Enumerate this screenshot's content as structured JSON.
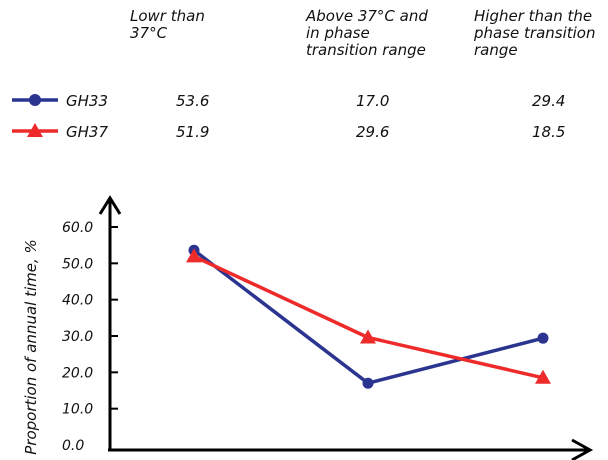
{
  "table": {
    "headers": [
      "Lowr than\n37°C",
      "Above 37°C and\nin phase\ntransition range",
      "Higher than the\nphase transition\nrange"
    ],
    "rows": [
      {
        "name": "GH33",
        "values": [
          "53.6",
          "17.0",
          "29.4"
        ]
      },
      {
        "name": "GH37",
        "values": [
          "51.9",
          "29.6",
          "18.5"
        ]
      }
    ]
  },
  "chart_data": {
    "type": "line",
    "categories": [
      "Lowr than 37°C",
      "Above 37°C and in phase transition range",
      "Higher than the phase transition range"
    ],
    "series": [
      {
        "name": "GH33",
        "values": [
          53.6,
          17.0,
          29.4
        ],
        "color": "#2b3590",
        "marker": "circle"
      },
      {
        "name": "GH37",
        "values": [
          51.9,
          29.6,
          18.5
        ],
        "color": "#ee2a2a",
        "marker": "triangle"
      }
    ],
    "ylabel": "Proportion of annual time, %",
    "yticks": [
      "0.0",
      "10.0",
      "20.0",
      "30.0",
      "40.0",
      "50.0",
      "60.0"
    ],
    "ylim": [
      0,
      60
    ],
    "grid": false,
    "legend": "top-left"
  }
}
